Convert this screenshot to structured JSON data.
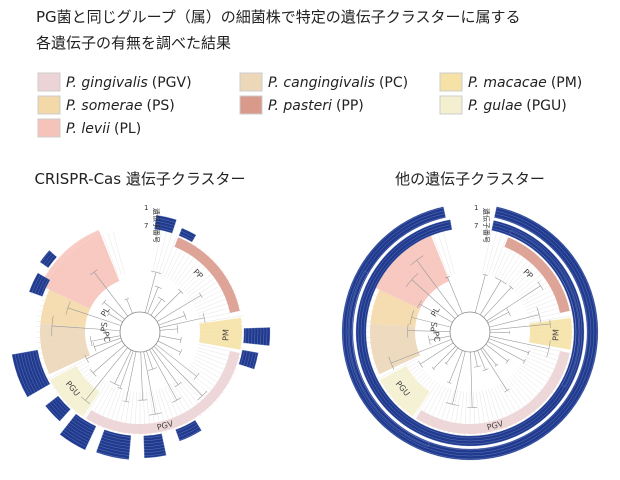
{
  "header": {
    "title_lines": [
      "PG菌と同じグループ（属）の細菌株で特定の遺伝子クラスターに属する",
      "各遺伝子の有無を調べた結果"
    ]
  },
  "legend": [
    {
      "name": "P. gingivalis",
      "abbr": "(PGV)",
      "color": "#ecd3d5"
    },
    {
      "name": "P. cangingivalis",
      "abbr": "(PC)",
      "color": "#ecd7b8"
    },
    {
      "name": "P. macacae",
      "abbr": "(PM)",
      "color": "#f6e2a6"
    },
    {
      "name": "P. somerae",
      "abbr": "(PS)",
      "color": "#f4d9a8"
    },
    {
      "name": "P. pasteri",
      "abbr": "(PP)",
      "color": "#d99a8c"
    },
    {
      "name": "P. gulae",
      "abbr": "(PGU)",
      "color": "#f4f0cf"
    },
    {
      "name": "P. levii",
      "abbr": "(PL)",
      "color": "#f6c3ba"
    }
  ],
  "panels": [
    {
      "title": "CRISPR-Cas 遺伝子クラスター",
      "clades": [
        "PP",
        "PM",
        "PGV",
        "PGU",
        "PC",
        "PS",
        "PL"
      ],
      "gene_labels": [
        "1",
        "7",
        "遺伝子番号"
      ]
    },
    {
      "title": "他の遺伝子クラスター",
      "clades": [
        "PP",
        "PM",
        "PGV",
        "PGU",
        "PC",
        "PS",
        "PL"
      ],
      "gene_labels": [
        "1",
        "7",
        "遺伝子番号"
      ]
    }
  ]
}
